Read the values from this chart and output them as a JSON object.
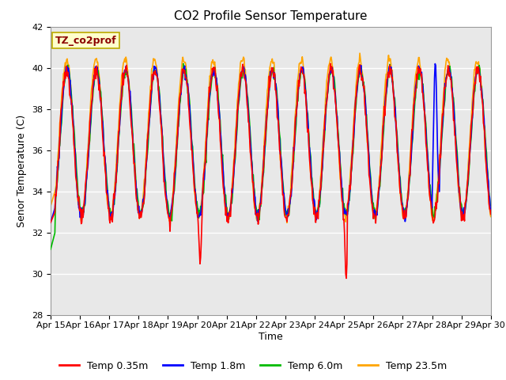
{
  "title": "CO2 Profile Sensor Temperature",
  "ylabel": "Senor Temperature (C)",
  "xlabel": "Time",
  "ylim": [
    28,
    42
  ],
  "yticks": [
    28,
    30,
    32,
    34,
    36,
    38,
    40,
    42
  ],
  "xlim": [
    0,
    15
  ],
  "xtick_labels": [
    "Apr 15",
    "Apr 16",
    "Apr 17",
    "Apr 18",
    "Apr 19",
    "Apr 20",
    "Apr 21",
    "Apr 22",
    "Apr 23",
    "Apr 24",
    "Apr 25",
    "Apr 26",
    "Apr 27",
    "Apr 28",
    "Apr 29",
    "Apr 30"
  ],
  "xtick_positions": [
    0,
    1,
    2,
    3,
    4,
    5,
    6,
    7,
    8,
    9,
    10,
    11,
    12,
    13,
    14,
    15
  ],
  "colors": {
    "red": "#FF0000",
    "blue": "#0000FF",
    "green": "#00BB00",
    "orange": "#FFA500"
  },
  "legend_label": "TZ_co2prof",
  "legend_label_color": "#8B0000",
  "legend_box_color": "#FFFFCC",
  "series_labels": [
    "Temp 0.35m",
    "Temp 1.8m",
    "Temp 6.0m",
    "Temp 23.5m"
  ],
  "plot_bg_color": "#E8E8E8",
  "fig_bg_color": "#FFFFFF",
  "title_fontsize": 11,
  "axis_fontsize": 9,
  "tick_fontsize": 8,
  "legend_fontsize": 9,
  "line_width": 1.2
}
